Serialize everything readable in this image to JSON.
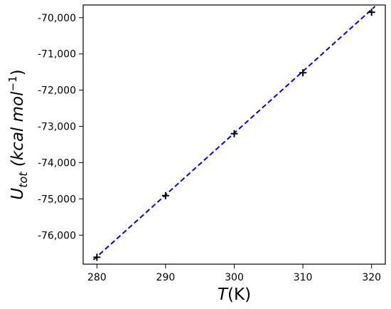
{
  "chart_data": {
    "type": "scatter",
    "xlabel_main": "T",
    "xlabel_unit": "(K)",
    "ylabel_main": "U",
    "ylabel_sub": "tot",
    "ylabel_unit_text": " (kcal mol",
    "ylabel_exp": "−1",
    "ylabel_close": ")",
    "xlim": [
      278,
      322
    ],
    "ylim": [
      -76800,
      -69650
    ],
    "x_ticks": [
      280,
      290,
      300,
      310,
      320
    ],
    "x_tick_labels": [
      "280",
      "290",
      "300",
      "310",
      "320"
    ],
    "y_ticks": [
      -76000,
      -75000,
      -74000,
      -73000,
      -72000,
      -71000,
      -70000
    ],
    "y_tick_labels": [
      "-76,000",
      "-75,000",
      "-74,000",
      "-73,000",
      "-72,000",
      "-71,000",
      "-70,000"
    ],
    "series": [
      {
        "marker": "+",
        "color": "#000000",
        "x": [
          280,
          290,
          300,
          310,
          320
        ],
        "y": [
          -76610,
          -74910,
          -73200,
          -71520,
          -69850
        ]
      }
    ],
    "fit_line": {
      "style": "dashed",
      "color": "#0000cc",
      "x": [
        279.5,
        320.5
      ],
      "y": [
        -76680,
        -69690
      ]
    },
    "grid": false
  }
}
